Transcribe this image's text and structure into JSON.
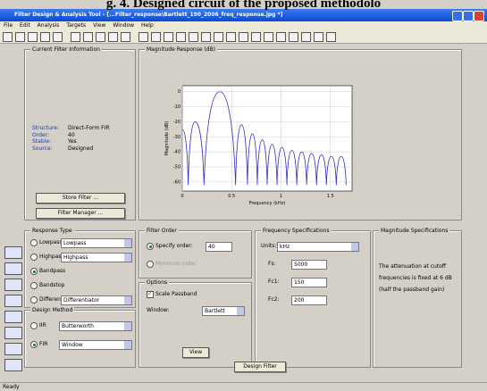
{
  "caption": "g. 4. Designed circuit of the proposed methodolo",
  "window_title": "Filter Design & Analysis Tool - [...Filter_response\\Bartlett_190_2006_freq_response.jpg *]",
  "menu": [
    "File",
    "Edit",
    "Analysis",
    "Targets",
    "View",
    "Window",
    "Help"
  ],
  "filter_info": {
    "title": "Current Filter Information",
    "rows": [
      [
        "Structure:",
        "Direct-Form FIR"
      ],
      [
        "Order:",
        "40"
      ],
      [
        "Stable:",
        "Yes"
      ],
      [
        "Source:",
        "Designed"
      ]
    ],
    "buttons": [
      "Store Filter ...",
      "Filter Manager ..."
    ]
  },
  "magnitude_panel": {
    "title": "Magnitude Response (dB)",
    "chart_data": {
      "type": "line",
      "xlabel": "Frequency (kHz)",
      "ylabel": "Magnitude (dB)",
      "xlim": [
        0,
        1.72
      ],
      "ylim": [
        -66,
        4
      ],
      "xticks": [
        0,
        0.5,
        1,
        1.5
      ],
      "yticks": [
        0,
        -10,
        -20,
        -30,
        -40,
        -50,
        -60
      ],
      "grid": true,
      "color": "#3030c0",
      "x": [
        0,
        0.06,
        0.13,
        0.22,
        0.38,
        0.54,
        0.6,
        0.66,
        0.71,
        0.76,
        0.81,
        0.86,
        0.91,
        0.96,
        1.01,
        1.06,
        1.11,
        1.16,
        1.21,
        1.26,
        1.31,
        1.36,
        1.41,
        1.46,
        1.51,
        1.56,
        1.61,
        1.66
      ],
      "values": [
        -25,
        -62,
        -20,
        -62,
        0,
        -62,
        -22,
        -62,
        -28,
        -62,
        -32,
        -62,
        -35,
        -62,
        -37,
        -62,
        -39,
        -62,
        -40,
        -62,
        -41,
        -62,
        -42,
        -62,
        -43,
        -62,
        -43,
        -62
      ]
    }
  },
  "response_type": {
    "title": "Response Type",
    "options": [
      "Lowpass",
      "Highpass",
      "Bandpass",
      "Bandstop",
      "Differentiator"
    ],
    "dropdowns": [
      "Lowpass",
      "Highpass",
      "Differentiator"
    ]
  },
  "design_method": {
    "title": "Design Method",
    "options": [
      "IIR",
      "FIR"
    ],
    "dropdowns": [
      "Butterworth",
      "Window"
    ]
  },
  "filter_order": {
    "title": "Filter Order",
    "specify": "Specify order:",
    "order": "40",
    "minimum": "Minimum order"
  },
  "options": {
    "title": "Options",
    "scale": "Scale Passband",
    "window_label": "Window:",
    "window": "Bartlett",
    "view": "View"
  },
  "freq_specs": {
    "title": "Frequency Specifications",
    "units_label": "Units:",
    "units": "kHz",
    "rows": [
      [
        "Fs:",
        "5000"
      ],
      [
        "Fc1:",
        "150"
      ],
      [
        "Fc2:",
        "200"
      ]
    ]
  },
  "mag_specs": {
    "title": "Magnitude Specifications",
    "lines": [
      "The attenuation at cutoff",
      "frequencies is fixed at 6 dB",
      "(half the passband gain)"
    ]
  },
  "design_button": "Design Filter",
  "status": "Ready"
}
